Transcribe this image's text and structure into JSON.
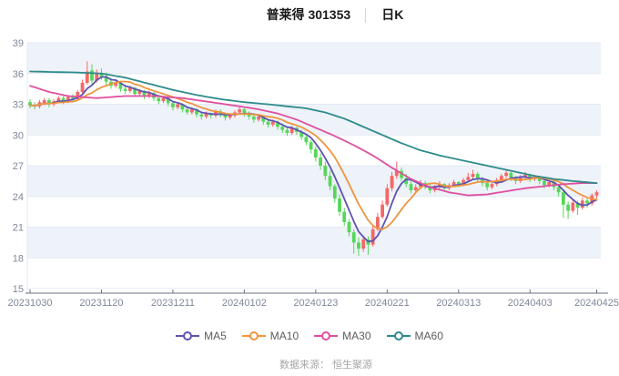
{
  "header": {
    "title": "普莱得 301353",
    "separator": "│",
    "subtitle": "日K"
  },
  "footer": {
    "text": "数据来源： 恒生聚源"
  },
  "chart_data": {
    "type": "candlestick",
    "title": "普莱得 301353 日K",
    "y_ticks": [
      39,
      36,
      33,
      30,
      27,
      24,
      21,
      18,
      15
    ],
    "ylim": [
      15,
      39
    ],
    "x_tick_labels": [
      "20231030",
      "20231120",
      "20231211",
      "20240102",
      "20240123",
      "20240221",
      "20240313",
      "20240403",
      "20240425"
    ],
    "x_tick_indices": [
      0,
      15,
      30,
      45,
      60,
      75,
      90,
      105,
      119
    ],
    "up_color": "#f46868",
    "down_color": "#56d65a",
    "band_color": "#eef2f9",
    "grid_color": "#e4e9f2",
    "axis_color": "#6b7280",
    "label_color": "#7e8799",
    "candle_fields": [
      "date",
      "open",
      "high",
      "low",
      "close"
    ],
    "candles": [
      [
        "20231030",
        33.2,
        33.5,
        32.6,
        32.9
      ],
      [
        "20231031",
        32.9,
        33.2,
        32.5,
        32.8
      ],
      [
        "20231101",
        32.8,
        33.4,
        32.6,
        33.2
      ],
      [
        "20231102",
        33.1,
        33.6,
        32.9,
        33.4
      ],
      [
        "20231103",
        33.4,
        33.6,
        32.7,
        33.0
      ],
      [
        "20231106",
        33.0,
        33.5,
        32.8,
        33.3
      ],
      [
        "20231107",
        33.3,
        33.8,
        33.1,
        33.6
      ],
      [
        "20231108",
        33.6,
        33.8,
        33.0,
        33.2
      ],
      [
        "20231109",
        33.2,
        33.9,
        33.1,
        33.7
      ],
      [
        "20231110",
        33.7,
        34.0,
        33.2,
        33.5
      ],
      [
        "20231113",
        33.5,
        34.4,
        33.4,
        34.2
      ],
      [
        "20231114",
        34.2,
        35.4,
        34.0,
        35.1
      ],
      [
        "20231115",
        35.1,
        37.2,
        34.9,
        36.2
      ],
      [
        "20231116",
        36.3,
        36.9,
        35.0,
        35.3
      ],
      [
        "20231117",
        35.3,
        36.4,
        35.1,
        36.0
      ],
      [
        "20231120",
        36.0,
        36.5,
        35.4,
        35.7
      ],
      [
        "20231121",
        35.7,
        36.1,
        34.9,
        35.2
      ],
      [
        "20231122",
        35.2,
        35.6,
        34.5,
        34.8
      ],
      [
        "20231123",
        34.8,
        35.4,
        34.6,
        35.1
      ],
      [
        "20231124",
        35.1,
        35.3,
        34.2,
        34.5
      ],
      [
        "20231127",
        34.5,
        34.9,
        34.0,
        34.3
      ],
      [
        "20231128",
        34.3,
        34.8,
        34.1,
        34.6
      ],
      [
        "20231129",
        34.6,
        34.7,
        33.8,
        34.0
      ],
      [
        "20231130",
        34.0,
        34.5,
        33.8,
        34.3
      ],
      [
        "20231201",
        34.3,
        34.4,
        33.5,
        33.8
      ],
      [
        "20231204",
        33.8,
        34.3,
        33.6,
        34.1
      ],
      [
        "20231205",
        34.1,
        34.2,
        33.3,
        33.6
      ],
      [
        "20231206",
        33.6,
        33.9,
        33.0,
        33.3
      ],
      [
        "20231207",
        33.3,
        33.8,
        33.1,
        33.6
      ],
      [
        "20231208",
        33.6,
        33.7,
        32.8,
        33.1
      ],
      [
        "20231211",
        33.1,
        33.3,
        32.4,
        32.7
      ],
      [
        "20231212",
        32.7,
        33.2,
        32.5,
        33.0
      ],
      [
        "20231213",
        33.0,
        33.1,
        32.2,
        32.5
      ],
      [
        "20231214",
        32.5,
        32.8,
        32.0,
        32.2
      ],
      [
        "20231215",
        32.2,
        32.7,
        32.0,
        32.5
      ],
      [
        "20231218",
        32.5,
        32.6,
        31.7,
        32.0
      ],
      [
        "20231219",
        32.0,
        32.3,
        31.5,
        31.8
      ],
      [
        "20231220",
        31.8,
        32.3,
        31.6,
        32.1
      ],
      [
        "20231221",
        32.1,
        32.2,
        31.6,
        31.9
      ],
      [
        "20231222",
        31.9,
        32.5,
        31.7,
        32.3
      ],
      [
        "20231225",
        32.3,
        32.5,
        31.7,
        32.0
      ],
      [
        "20231226",
        32.0,
        32.2,
        31.4,
        31.7
      ],
      [
        "20231227",
        31.7,
        32.1,
        31.5,
        31.9
      ],
      [
        "20231228",
        31.9,
        32.4,
        31.7,
        32.2
      ],
      [
        "20231229",
        32.2,
        32.7,
        32.0,
        32.5
      ],
      [
        "20240102",
        32.5,
        32.6,
        31.8,
        32.1
      ],
      [
        "20240103",
        32.1,
        32.3,
        31.5,
        31.8
      ],
      [
        "20240104",
        31.8,
        32.0,
        31.2,
        31.5
      ],
      [
        "20240105",
        31.5,
        32.0,
        31.3,
        31.8
      ],
      [
        "20240108",
        31.8,
        31.9,
        31.0,
        31.3
      ],
      [
        "20240109",
        31.3,
        31.5,
        30.7,
        31.0
      ],
      [
        "20240110",
        31.0,
        31.5,
        30.8,
        31.3
      ],
      [
        "20240111",
        31.3,
        31.4,
        30.5,
        30.8
      ],
      [
        "20240112",
        30.8,
        31.1,
        30.2,
        30.5
      ],
      [
        "20240115",
        30.5,
        30.8,
        29.9,
        30.2
      ],
      [
        "20240116",
        30.2,
        30.9,
        30.0,
        30.7
      ],
      [
        "20240117",
        30.7,
        30.8,
        30.0,
        30.3
      ],
      [
        "20240118",
        30.3,
        30.5,
        29.5,
        29.8
      ],
      [
        "20240119",
        29.8,
        30.0,
        29.0,
        29.3
      ],
      [
        "20240122",
        29.3,
        29.5,
        28.2,
        28.6
      ],
      [
        "20240123",
        28.6,
        28.9,
        27.4,
        27.8
      ],
      [
        "20240124",
        27.8,
        28.2,
        26.6,
        27.0
      ],
      [
        "20240125",
        27.0,
        27.4,
        25.6,
        26.0
      ],
      [
        "20240126",
        26.0,
        26.5,
        24.6,
        25.0
      ],
      [
        "20240129",
        25.0,
        25.2,
        23.4,
        23.8
      ],
      [
        "20240130",
        23.8,
        24.2,
        22.1,
        22.5
      ],
      [
        "20240131",
        22.5,
        22.9,
        21.1,
        21.5
      ],
      [
        "20240201",
        21.5,
        21.8,
        20.1,
        20.5
      ],
      [
        "20240202",
        20.5,
        20.8,
        18.4,
        19.5
      ],
      [
        "20240205",
        19.5,
        20.0,
        18.2,
        18.9
      ],
      [
        "20240206",
        18.9,
        20.2,
        18.6,
        19.8
      ],
      [
        "20240207",
        19.8,
        20.1,
        18.3,
        19.3
      ],
      [
        "20240208",
        19.3,
        21.2,
        19.1,
        20.8
      ],
      [
        "20240219",
        20.8,
        22.4,
        20.6,
        22.0
      ],
      [
        "20240220",
        22.0,
        23.6,
        21.8,
        23.2
      ],
      [
        "20240221",
        23.2,
        25.2,
        23.0,
        24.8
      ],
      [
        "20240222",
        24.8,
        26.4,
        24.5,
        26.0
      ],
      [
        "20240223",
        26.0,
        27.4,
        25.7,
        26.5
      ],
      [
        "20240226",
        26.5,
        26.8,
        25.5,
        25.8
      ],
      [
        "20240227",
        25.8,
        26.2,
        24.9,
        25.2
      ],
      [
        "20240228",
        25.2,
        25.5,
        24.3,
        24.6
      ],
      [
        "20240229",
        24.6,
        25.2,
        24.4,
        24.9
      ],
      [
        "20240301",
        24.9,
        25.6,
        24.7,
        25.3
      ],
      [
        "20240304",
        25.3,
        25.5,
        24.7,
        25.0
      ],
      [
        "20240305",
        25.0,
        25.2,
        24.3,
        24.6
      ],
      [
        "20240306",
        24.6,
        25.1,
        24.4,
        24.9
      ],
      [
        "20240307",
        24.9,
        25.5,
        24.7,
        25.2
      ],
      [
        "20240308",
        25.2,
        25.3,
        24.5,
        24.8
      ],
      [
        "20240311",
        24.8,
        25.3,
        24.6,
        25.1
      ],
      [
        "20240312",
        25.1,
        25.6,
        24.9,
        25.4
      ],
      [
        "20240313",
        25.4,
        25.5,
        24.9,
        25.2
      ],
      [
        "20240314",
        25.2,
        25.8,
        25.0,
        25.6
      ],
      [
        "20240315",
        25.6,
        26.3,
        25.4,
        25.9
      ],
      [
        "20240318",
        25.9,
        26.6,
        25.7,
        26.2
      ],
      [
        "20240319",
        26.2,
        26.4,
        25.4,
        25.7
      ],
      [
        "20240320",
        25.7,
        25.9,
        25.0,
        25.3
      ],
      [
        "20240321",
        25.3,
        25.5,
        24.6,
        24.9
      ],
      [
        "20240322",
        24.9,
        25.4,
        24.7,
        25.2
      ],
      [
        "20240325",
        25.2,
        25.8,
        25.0,
        25.6
      ],
      [
        "20240326",
        25.6,
        26.2,
        25.4,
        26.0
      ],
      [
        "20240327",
        26.0,
        26.6,
        25.8,
        26.3
      ],
      [
        "20240328",
        26.3,
        26.4,
        25.5,
        25.8
      ],
      [
        "20240329",
        25.8,
        26.0,
        25.2,
        25.5
      ],
      [
        "20240401",
        25.5,
        26.1,
        25.3,
        25.9
      ],
      [
        "20240402",
        25.9,
        26.4,
        25.7,
        26.1
      ],
      [
        "20240403",
        26.1,
        26.2,
        25.4,
        25.7
      ],
      [
        "20240408",
        25.7,
        26.1,
        25.5,
        25.9
      ],
      [
        "20240409",
        25.9,
        26.0,
        25.2,
        25.5
      ],
      [
        "20240410",
        25.5,
        25.7,
        24.8,
        25.1
      ],
      [
        "20240411",
        25.1,
        25.6,
        24.9,
        25.4
      ],
      [
        "20240412",
        25.4,
        25.5,
        24.6,
        24.9
      ],
      [
        "20240415",
        24.9,
        25.0,
        24.0,
        24.4
      ],
      [
        "20240416",
        24.4,
        24.6,
        21.9,
        23.2
      ],
      [
        "20240417",
        23.2,
        23.5,
        21.8,
        22.6
      ],
      [
        "20240418",
        22.6,
        23.7,
        22.4,
        23.4
      ],
      [
        "20240419",
        23.4,
        23.6,
        22.2,
        22.9
      ],
      [
        "20240422",
        22.9,
        23.9,
        22.7,
        23.6
      ],
      [
        "20240423",
        23.6,
        23.8,
        22.9,
        23.3
      ],
      [
        "20240424",
        23.3,
        24.3,
        23.1,
        24.1
      ],
      [
        "20240425",
        24.1,
        24.6,
        23.8,
        24.4
      ]
    ],
    "ma_series": [
      {
        "name": "MA5",
        "color": "#5e53b0",
        "window": 5
      },
      {
        "name": "MA10",
        "color": "#ef953f",
        "window": 10
      },
      {
        "name": "MA30",
        "color": "#df4f9f",
        "anchors": [
          [
            0,
            34.8
          ],
          [
            4,
            34.2
          ],
          [
            8,
            33.8
          ],
          [
            14,
            33.6
          ],
          [
            20,
            33.8
          ],
          [
            26,
            33.8
          ],
          [
            32,
            33.6
          ],
          [
            38,
            33.2
          ],
          [
            44,
            32.8
          ],
          [
            48,
            32.5
          ],
          [
            52,
            32.1
          ],
          [
            56,
            31.5
          ],
          [
            60,
            30.7
          ],
          [
            64,
            29.9
          ],
          [
            68,
            29.0
          ],
          [
            72,
            28.0
          ],
          [
            76,
            26.8
          ],
          [
            80,
            25.7
          ],
          [
            84,
            24.9
          ],
          [
            88,
            24.4
          ],
          [
            92,
            24.1
          ],
          [
            96,
            24.2
          ],
          [
            100,
            24.5
          ],
          [
            104,
            24.8
          ],
          [
            108,
            25.0
          ],
          [
            112,
            25.2
          ],
          [
            116,
            25.3
          ],
          [
            119,
            25.3
          ]
        ]
      },
      {
        "name": "MA60",
        "color": "#2e8b8b",
        "anchors": [
          [
            0,
            36.2
          ],
          [
            5,
            36.15
          ],
          [
            10,
            36.1
          ],
          [
            15,
            36.0
          ],
          [
            20,
            35.6
          ],
          [
            25,
            35.0
          ],
          [
            30,
            34.4
          ],
          [
            35,
            33.9
          ],
          [
            40,
            33.5
          ],
          [
            45,
            33.2
          ],
          [
            50,
            33.0
          ],
          [
            54,
            32.8
          ],
          [
            58,
            32.6
          ],
          [
            62,
            32.2
          ],
          [
            66,
            31.6
          ],
          [
            70,
            30.8
          ],
          [
            74,
            30.0
          ],
          [
            78,
            29.2
          ],
          [
            82,
            28.5
          ],
          [
            86,
            28.0
          ],
          [
            90,
            27.6
          ],
          [
            94,
            27.2
          ],
          [
            98,
            26.8
          ],
          [
            102,
            26.4
          ],
          [
            106,
            26.0
          ],
          [
            110,
            25.7
          ],
          [
            114,
            25.5
          ],
          [
            119,
            25.3
          ]
        ]
      }
    ]
  }
}
